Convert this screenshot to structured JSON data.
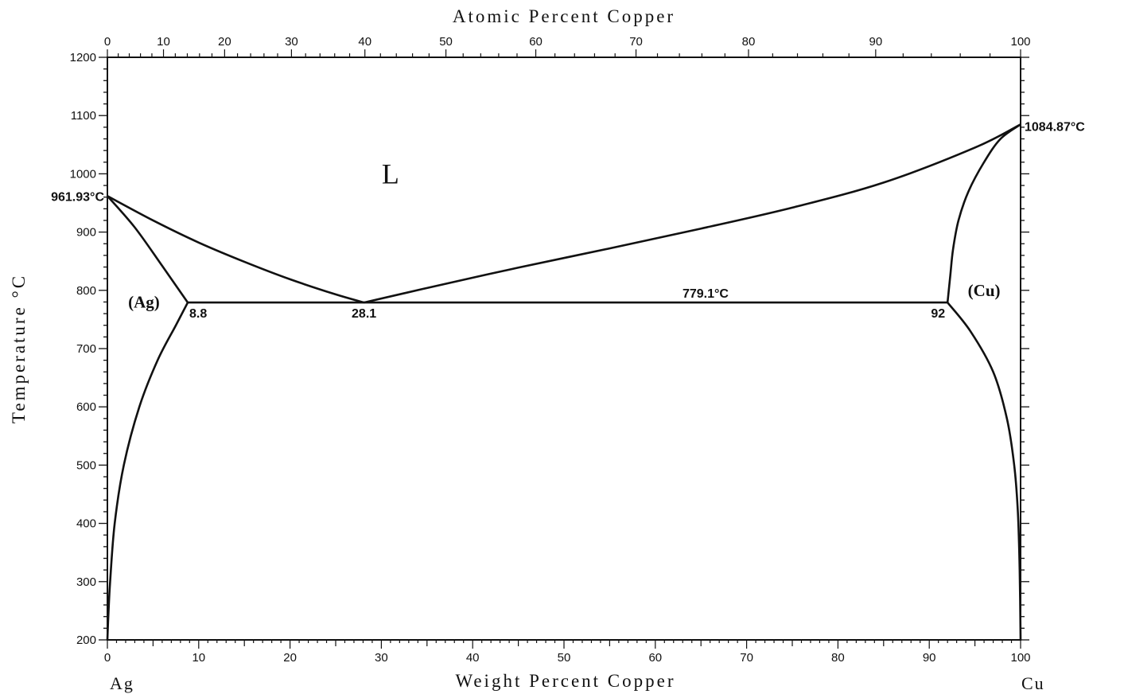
{
  "chart_data": {
    "type": "line",
    "title": "",
    "xlabel": "Weight Percent Copper",
    "x2label": "Atomic Percent Copper",
    "ylabel": "Temperature °C",
    "xlim": [
      0,
      100
    ],
    "ylim": [
      200,
      1200
    ],
    "x_ticks": [
      0,
      10,
      20,
      30,
      40,
      50,
      60,
      70,
      80,
      90,
      100
    ],
    "x2_ticks": [
      0,
      10,
      20,
      30,
      40,
      50,
      60,
      70,
      80,
      90,
      100
    ],
    "y_ticks": [
      200,
      300,
      400,
      500,
      600,
      700,
      800,
      900,
      1000,
      1100,
      1200
    ],
    "left_element": "Ag",
    "right_element": "Cu",
    "grid": false,
    "series": [
      {
        "id": "liquidus-ag",
        "x": [
          0,
          5,
          10,
          15,
          20,
          25,
          28.1
        ],
        "y": [
          961.93,
          920,
          882,
          849,
          819,
          793,
          779.1
        ]
      },
      {
        "id": "liquidus-cu",
        "x": [
          28.1,
          35,
          45,
          55,
          65,
          75,
          85,
          95,
          100
        ],
        "y": [
          779.1,
          804,
          839,
          872,
          906,
          942,
          985,
          1045,
          1084.87
        ]
      },
      {
        "id": "solidus-ag",
        "x": [
          0,
          3,
          6,
          8.8
        ],
        "y": [
          961.93,
          908,
          842,
          779.1
        ]
      },
      {
        "id": "solidus-cu",
        "x": [
          100,
          97.8,
          96,
          94.3,
          93.2,
          92.6,
          92.3,
          92
        ],
        "y": [
          1084.87,
          1060,
          1020,
          970,
          920,
          870,
          825,
          779.1
        ]
      },
      {
        "id": "solvus-ag",
        "x": [
          8.8,
          7.5,
          5.5,
          3.5,
          1.8,
          0.8,
          0.3,
          0.1,
          0
        ],
        "y": [
          779.1,
          740,
          680,
          600,
          500,
          400,
          300,
          240,
          200
        ]
      },
      {
        "id": "solvus-cu",
        "x": [
          92,
          94.5,
          97,
          98.5,
          99.3,
          99.7,
          99.9,
          100
        ],
        "y": [
          779.1,
          730,
          660,
          580,
          500,
          420,
          320,
          200
        ]
      },
      {
        "id": "eutectic-line",
        "x": [
          8.8,
          92
        ],
        "y": [
          779.1,
          779.1
        ]
      }
    ],
    "annotations": [
      {
        "id": "ag-melting-point",
        "text": "961.93°C",
        "x": 0,
        "y": 961.93
      },
      {
        "id": "cu-melting-point",
        "text": "1084.87°C",
        "x": 100,
        "y": 1084.87
      },
      {
        "id": "eutectic-temperature",
        "text": "779.1°C",
        "x": 65.5,
        "y": 779.1
      },
      {
        "id": "ag-solubility",
        "text": "8.8",
        "x": 8.8,
        "y": 779.1
      },
      {
        "id": "eutectic-composition",
        "text": "28.1",
        "x": 28.1,
        "y": 779.1
      },
      {
        "id": "cu-solubility",
        "text": "92",
        "x": 92,
        "y": 779.1
      }
    ],
    "regions": [
      {
        "id": "liquid",
        "text": "L",
        "x": 31,
        "y": 1000
      },
      {
        "id": "ag-solid-solution",
        "text": "(Ag)",
        "x": 4,
        "y": 780
      },
      {
        "id": "cu-solid-solution",
        "text": "(Cu)",
        "x": 96,
        "y": 800
      }
    ]
  }
}
